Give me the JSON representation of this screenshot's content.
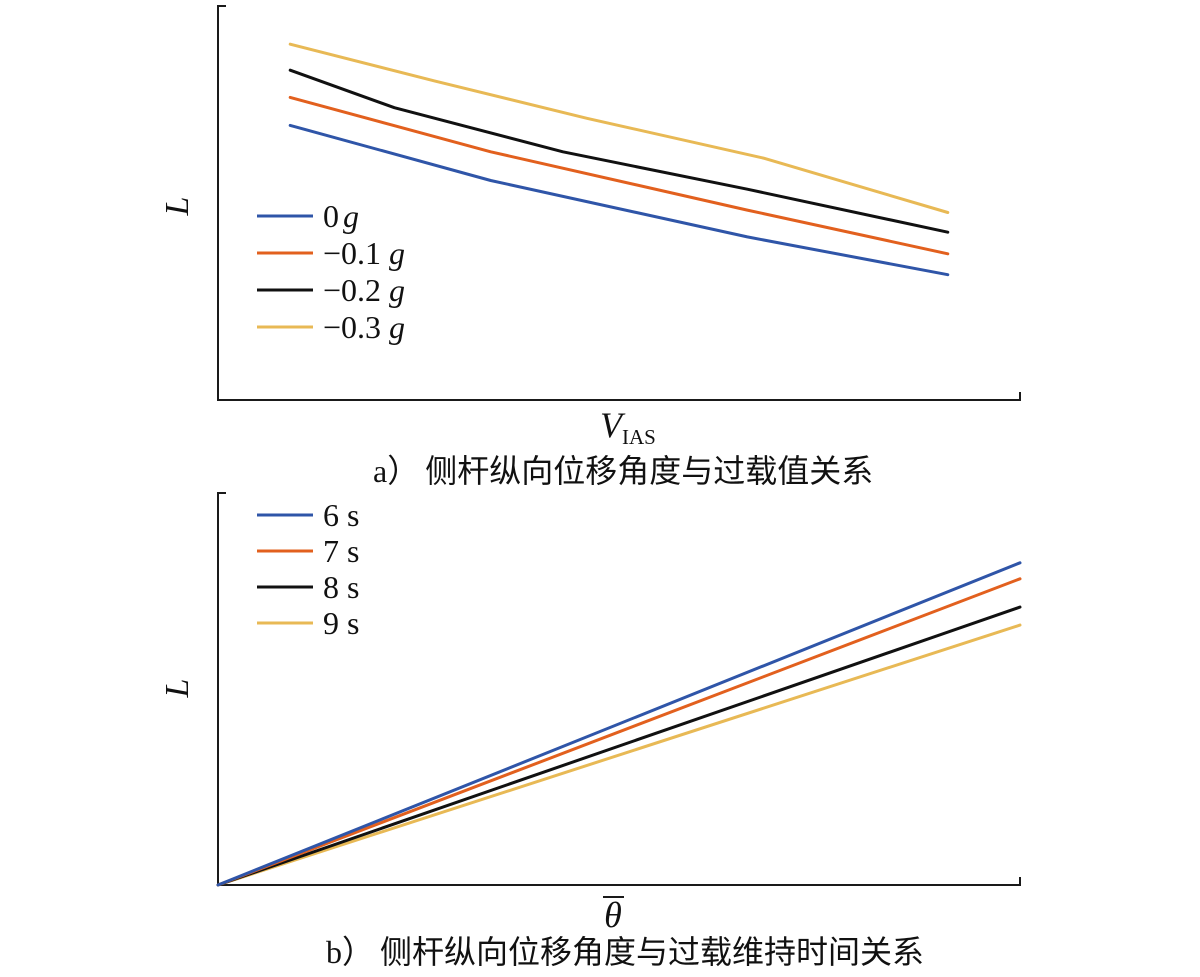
{
  "chart_data": [
    {
      "type": "line",
      "caption_label": "a）",
      "caption_text": "侧杆纵向位移角度与过载值关系",
      "ylabel": "L",
      "xlabel_main": "V",
      "xlabel_sub": "IAS",
      "xlim": [
        0,
        1
      ],
      "ylim": [
        0,
        1
      ],
      "grid": false,
      "legend_position": "left",
      "series": [
        {
          "name": "0 g",
          "legend_num": "0",
          "legend_unit": "g",
          "color": "#2f55a8",
          "x": [
            0.09,
            0.34,
            0.66,
            0.91
          ],
          "y": [
            0.697,
            0.557,
            0.414,
            0.318
          ]
        },
        {
          "name": "−0.1 g",
          "legend_num": "−0.1",
          "legend_unit": "g",
          "color": "#e2601e",
          "x": [
            0.09,
            0.34,
            0.66,
            0.91
          ],
          "y": [
            0.768,
            0.63,
            0.482,
            0.371
          ]
        },
        {
          "name": "−0.2 g",
          "legend_num": "−0.2",
          "legend_unit": "g",
          "color": "#111111",
          "x": [
            0.09,
            0.22,
            0.43,
            0.66,
            0.91
          ],
          "y": [
            0.837,
            0.742,
            0.63,
            0.535,
            0.426
          ]
        },
        {
          "name": "−0.3 g",
          "legend_num": "−0.3",
          "legend_unit": "g",
          "color": "#e8b955",
          "x": [
            0.09,
            0.27,
            0.46,
            0.68,
            0.91
          ],
          "y": [
            0.903,
            0.81,
            0.715,
            0.614,
            0.476
          ]
        }
      ]
    },
    {
      "type": "line",
      "caption_label": "b）",
      "caption_text": "侧杆纵向位移角度与过载维持时间关系",
      "ylabel": "L",
      "xlabel_main": "θ",
      "xlim": [
        0,
        1
      ],
      "ylim": [
        0,
        1
      ],
      "grid": false,
      "legend_position": "top-left",
      "series": [
        {
          "name": "6 s",
          "legend_num": "6 s",
          "color": "#2f55a8",
          "x": [
            0,
            1
          ],
          "y": [
            0,
            0.822
          ]
        },
        {
          "name": "7 s",
          "legend_num": "7 s",
          "color": "#e2601e",
          "x": [
            0,
            1
          ],
          "y": [
            0,
            0.781
          ]
        },
        {
          "name": "8 s",
          "legend_num": "8 s",
          "color": "#111111",
          "x": [
            0,
            1
          ],
          "y": [
            0,
            0.709
          ]
        },
        {
          "name": "9 s",
          "legend_num": "9 s",
          "color": "#e8b955",
          "x": [
            0,
            1
          ],
          "y": [
            0,
            0.663
          ]
        }
      ]
    }
  ]
}
